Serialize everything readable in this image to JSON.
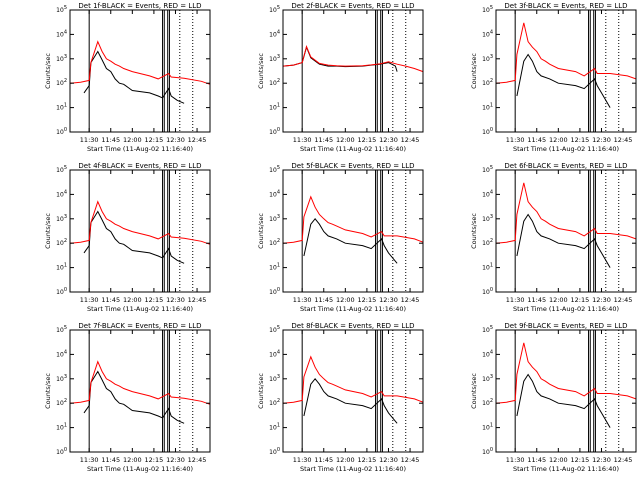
{
  "figure": {
    "background": "#ffffff",
    "black_color": "#000000",
    "red_color": "#ff0000"
  },
  "common": {
    "ylabel": "Counts/sec",
    "xlabel": "Start Time (11-Aug-02 11:16:40)",
    "x_ticks": [
      "11:30",
      "11:45",
      "12:00",
      "12:15",
      "12:30",
      "12:45"
    ],
    "x_tick_hours": [
      11.5,
      11.75,
      12.0,
      12.25,
      12.5,
      12.75
    ],
    "xlim_hours": [
      11.2778,
      12.9
    ],
    "y_ticks": [
      "10^0",
      "10^1",
      "10^2",
      "10^3",
      "10^4",
      "10^5"
    ],
    "y_scale": "log",
    "ylim": [
      1,
      100000
    ],
    "marker_lines_solid_hours": [
      11.5,
      12.35,
      12.37,
      12.41,
      12.43
    ],
    "marker_lines_dotted_hours": [
      12.55,
      12.7
    ]
  },
  "chart_data": [
    {
      "type": "line",
      "title": "Det 1f-BLACK = Events, RED = LLD",
      "series": [
        {
          "name": "Events",
          "color": "#000000",
          "x": [
            11.44,
            11.5,
            11.52,
            11.6,
            11.65,
            11.7,
            11.75,
            11.8,
            11.85,
            11.9,
            12.0,
            12.2,
            12.3,
            12.35,
            12.42,
            12.45,
            12.52,
            12.6
          ],
          "y": [
            40,
            80,
            700,
            2000,
            900,
            400,
            300,
            150,
            100,
            90,
            50,
            40,
            30,
            25,
            60,
            30,
            20,
            15
          ]
        },
        {
          "name": "LLD",
          "color": "#ff0000",
          "x": [
            11.28,
            11.4,
            11.5,
            11.52,
            11.6,
            11.65,
            11.7,
            11.75,
            11.8,
            11.85,
            11.9,
            12.0,
            12.2,
            12.3,
            12.42,
            12.45,
            12.6,
            12.8,
            12.9
          ],
          "y": [
            100,
            110,
            130,
            700,
            5000,
            2000,
            1000,
            800,
            600,
            500,
            400,
            300,
            200,
            150,
            250,
            180,
            160,
            120,
            90
          ]
        }
      ]
    },
    {
      "type": "line",
      "title": "Det 2f-BLACK = Events, RED = LLD",
      "series": [
        {
          "name": "Events",
          "color": "#000000",
          "x": [
            11.28,
            11.4,
            11.5,
            11.55,
            11.6,
            11.7,
            11.8,
            11.9,
            12.0,
            12.2,
            12.3,
            12.4,
            12.5,
            12.58,
            12.6
          ],
          "y": [
            500,
            550,
            700,
            3000,
            1100,
            600,
            500,
            500,
            480,
            500,
            550,
            600,
            700,
            500,
            300
          ]
        },
        {
          "name": "LLD",
          "color": "#ff0000",
          "x": [
            11.28,
            11.4,
            11.5,
            11.55,
            11.6,
            11.7,
            11.8,
            11.9,
            12.0,
            12.2,
            12.3,
            12.4,
            12.5,
            12.6,
            12.7,
            12.8,
            12.9
          ],
          "y": [
            500,
            550,
            700,
            3200,
            1200,
            650,
            550,
            520,
            500,
            520,
            560,
            620,
            750,
            600,
            500,
            400,
            300
          ]
        }
      ]
    },
    {
      "type": "line",
      "title": "Det 3f-BLACK = Events, RED = LLD",
      "series": [
        {
          "name": "Events",
          "color": "#000000",
          "x": [
            11.52,
            11.6,
            11.65,
            11.7,
            11.75,
            11.8,
            11.9,
            12.0,
            12.2,
            12.3,
            12.42,
            12.45,
            12.5,
            12.6
          ],
          "y": [
            30,
            800,
            1500,
            800,
            300,
            200,
            150,
            100,
            80,
            60,
            150,
            80,
            40,
            10
          ]
        },
        {
          "name": "LLD",
          "color": "#ff0000",
          "x": [
            11.28,
            11.4,
            11.5,
            11.52,
            11.6,
            11.65,
            11.7,
            11.75,
            11.8,
            11.85,
            11.9,
            12.0,
            12.2,
            12.3,
            12.42,
            12.45,
            12.6,
            12.8,
            12.9
          ],
          "y": [
            100,
            110,
            130,
            1500,
            30000,
            5000,
            3000,
            2000,
            1000,
            800,
            600,
            400,
            300,
            200,
            400,
            250,
            250,
            200,
            150
          ]
        }
      ]
    },
    {
      "type": "line",
      "title": "Det 4f-BLACK = Events, RED = LLD",
      "series": [
        {
          "name": "Events",
          "color": "#000000",
          "x": [
            11.44,
            11.5,
            11.52,
            11.6,
            11.65,
            11.7,
            11.75,
            11.8,
            11.85,
            11.9,
            12.0,
            12.2,
            12.3,
            12.35,
            12.42,
            12.45,
            12.52,
            12.6
          ],
          "y": [
            40,
            80,
            700,
            2000,
            900,
            400,
            300,
            150,
            100,
            90,
            50,
            40,
            30,
            25,
            60,
            30,
            20,
            15
          ]
        },
        {
          "name": "LLD",
          "color": "#ff0000",
          "x": [
            11.28,
            11.4,
            11.5,
            11.52,
            11.6,
            11.65,
            11.7,
            11.75,
            11.8,
            11.85,
            11.9,
            12.0,
            12.2,
            12.3,
            12.42,
            12.45,
            12.6,
            12.8,
            12.9
          ],
          "y": [
            100,
            110,
            130,
            700,
            5000,
            2000,
            1000,
            800,
            600,
            500,
            400,
            300,
            200,
            150,
            250,
            180,
            160,
            120,
            90
          ]
        }
      ]
    },
    {
      "type": "line",
      "title": "Det 5f-BLACK = Events, RED = LLD",
      "series": [
        {
          "name": "Events",
          "color": "#000000",
          "x": [
            11.52,
            11.6,
            11.65,
            11.7,
            11.75,
            11.8,
            11.9,
            12.0,
            12.2,
            12.3,
            12.42,
            12.45,
            12.5,
            12.6
          ],
          "y": [
            30,
            600,
            1000,
            600,
            300,
            200,
            150,
            100,
            80,
            60,
            150,
            80,
            40,
            15
          ]
        },
        {
          "name": "LLD",
          "color": "#ff0000",
          "x": [
            11.28,
            11.4,
            11.5,
            11.52,
            11.6,
            11.65,
            11.7,
            11.75,
            11.8,
            11.85,
            11.9,
            12.0,
            12.2,
            12.3,
            12.42,
            12.45,
            12.6,
            12.8,
            12.9
          ],
          "y": [
            100,
            110,
            130,
            1200,
            8000,
            3000,
            1500,
            1000,
            700,
            600,
            500,
            350,
            250,
            180,
            300,
            200,
            200,
            150,
            110
          ]
        }
      ]
    },
    {
      "type": "line",
      "title": "Det 6f-BLACK = Events, RED = LLD",
      "series": [
        {
          "name": "Events",
          "color": "#000000",
          "x": [
            11.52,
            11.6,
            11.65,
            11.7,
            11.75,
            11.8,
            11.9,
            12.0,
            12.2,
            12.3,
            12.42,
            12.45,
            12.5,
            12.6
          ],
          "y": [
            30,
            800,
            1500,
            800,
            300,
            200,
            150,
            100,
            80,
            60,
            150,
            80,
            40,
            10
          ]
        },
        {
          "name": "LLD",
          "color": "#ff0000",
          "x": [
            11.28,
            11.4,
            11.5,
            11.52,
            11.6,
            11.65,
            11.7,
            11.75,
            11.8,
            11.85,
            11.9,
            12.0,
            12.2,
            12.3,
            12.42,
            12.45,
            12.6,
            12.8,
            12.9
          ],
          "y": [
            100,
            110,
            130,
            1500,
            30000,
            5000,
            3000,
            2000,
            1000,
            800,
            600,
            400,
            300,
            200,
            400,
            250,
            250,
            200,
            150
          ]
        }
      ]
    },
    {
      "type": "line",
      "title": "Det 7f-BLACK = Events, RED = LLD",
      "series": [
        {
          "name": "Events",
          "color": "#000000",
          "x": [
            11.44,
            11.5,
            11.52,
            11.6,
            11.65,
            11.7,
            11.75,
            11.8,
            11.85,
            11.9,
            12.0,
            12.2,
            12.3,
            12.35,
            12.42,
            12.45,
            12.52,
            12.6
          ],
          "y": [
            40,
            80,
            700,
            2000,
            900,
            400,
            300,
            150,
            100,
            90,
            50,
            40,
            30,
            25,
            60,
            30,
            20,
            15
          ]
        },
        {
          "name": "LLD",
          "color": "#ff0000",
          "x": [
            11.28,
            11.4,
            11.5,
            11.52,
            11.6,
            11.65,
            11.7,
            11.75,
            11.8,
            11.85,
            11.9,
            12.0,
            12.2,
            12.3,
            12.42,
            12.45,
            12.6,
            12.8,
            12.9
          ],
          "y": [
            100,
            110,
            130,
            700,
            5000,
            2000,
            1000,
            800,
            600,
            500,
            400,
            300,
            200,
            150,
            250,
            180,
            160,
            120,
            90
          ]
        }
      ]
    },
    {
      "type": "line",
      "title": "Det 8f-BLACK = Events, RED = LLD",
      "series": [
        {
          "name": "Events",
          "color": "#000000",
          "x": [
            11.52,
            11.6,
            11.65,
            11.7,
            11.75,
            11.8,
            11.9,
            12.0,
            12.2,
            12.3,
            12.42,
            12.45,
            12.5,
            12.6
          ],
          "y": [
            30,
            600,
            1000,
            600,
            300,
            200,
            150,
            100,
            80,
            60,
            150,
            80,
            40,
            15
          ]
        },
        {
          "name": "LLD",
          "color": "#ff0000",
          "x": [
            11.28,
            11.4,
            11.5,
            11.52,
            11.6,
            11.65,
            11.7,
            11.75,
            11.8,
            11.85,
            11.9,
            12.0,
            12.2,
            12.3,
            12.42,
            12.45,
            12.6,
            12.8,
            12.9
          ],
          "y": [
            100,
            110,
            130,
            1200,
            8000,
            3000,
            1500,
            1000,
            700,
            600,
            500,
            350,
            250,
            180,
            300,
            200,
            200,
            150,
            110
          ]
        }
      ]
    },
    {
      "type": "line",
      "title": "Det 9f-BLACK = Events, RED = LLD",
      "series": [
        {
          "name": "Events",
          "color": "#000000",
          "x": [
            11.52,
            11.6,
            11.65,
            11.7,
            11.75,
            11.8,
            11.9,
            12.0,
            12.2,
            12.3,
            12.42,
            12.45,
            12.5,
            12.6
          ],
          "y": [
            30,
            800,
            1500,
            800,
            300,
            200,
            150,
            100,
            80,
            60,
            150,
            80,
            40,
            10
          ]
        },
        {
          "name": "LLD",
          "color": "#ff0000",
          "x": [
            11.28,
            11.4,
            11.5,
            11.52,
            11.6,
            11.65,
            11.7,
            11.75,
            11.8,
            11.85,
            11.9,
            12.0,
            12.2,
            12.3,
            12.42,
            12.45,
            12.6,
            12.8,
            12.9
          ],
          "y": [
            100,
            110,
            130,
            1500,
            30000,
            5000,
            3000,
            2000,
            1000,
            800,
            600,
            400,
            300,
            200,
            400,
            250,
            250,
            200,
            150
          ]
        }
      ]
    }
  ]
}
